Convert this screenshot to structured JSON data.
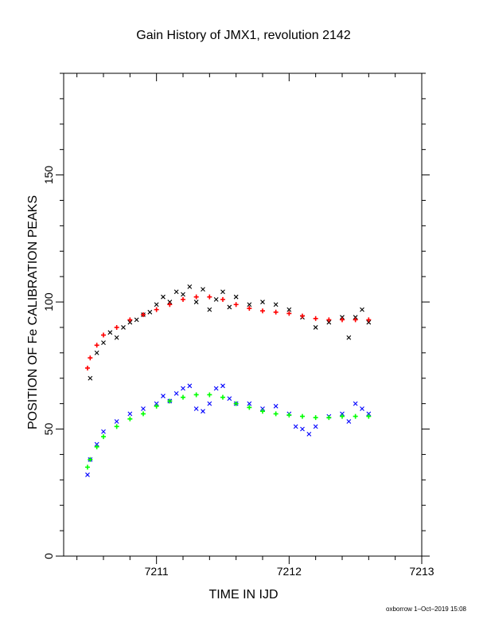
{
  "chart_data": {
    "type": "scatter",
    "title": "Gain History of JMX1, revolution 2142",
    "xlabel": "TIME IN IJD",
    "ylabel": "POSITION OF Fe CALIBRATION PEAKS",
    "xlim": [
      7210.3,
      7213.0
    ],
    "ylim": [
      0,
      190
    ],
    "xticks": [
      "7211",
      "7212",
      "7213"
    ],
    "yticks": [
      "0",
      "50",
      "100",
      "150"
    ],
    "grid": false,
    "series": [
      {
        "color": "#000000",
        "marker": "x",
        "points": [
          [
            7210.5,
            70
          ],
          [
            7210.55,
            80
          ],
          [
            7210.6,
            84
          ],
          [
            7210.65,
            88
          ],
          [
            7210.7,
            86
          ],
          [
            7210.75,
            90
          ],
          [
            7210.8,
            92
          ],
          [
            7210.85,
            93
          ],
          [
            7210.9,
            95
          ],
          [
            7210.95,
            96
          ],
          [
            7211.0,
            99
          ],
          [
            7211.05,
            102
          ],
          [
            7211.1,
            100
          ],
          [
            7211.15,
            104
          ],
          [
            7211.2,
            103
          ],
          [
            7211.25,
            106
          ],
          [
            7211.3,
            100
          ],
          [
            7211.35,
            105
          ],
          [
            7211.4,
            97
          ],
          [
            7211.45,
            101
          ],
          [
            7211.5,
            104
          ],
          [
            7211.55,
            98
          ],
          [
            7211.6,
            102
          ],
          [
            7211.7,
            99
          ],
          [
            7211.8,
            100
          ],
          [
            7211.9,
            99
          ],
          [
            7212.0,
            97
          ],
          [
            7212.1,
            94
          ],
          [
            7212.2,
            90
          ],
          [
            7212.3,
            92
          ],
          [
            7212.4,
            94
          ],
          [
            7212.45,
            86
          ],
          [
            7212.5,
            94
          ],
          [
            7212.55,
            97
          ],
          [
            7212.6,
            92
          ]
        ]
      },
      {
        "color": "#ff0000",
        "marker": "+",
        "points": [
          [
            7210.48,
            74
          ],
          [
            7210.5,
            78
          ],
          [
            7210.55,
            83
          ],
          [
            7210.6,
            87
          ],
          [
            7210.7,
            90
          ],
          [
            7210.8,
            93
          ],
          [
            7210.9,
            95
          ],
          [
            7211.0,
            97
          ],
          [
            7211.1,
            99
          ],
          [
            7211.2,
            101
          ],
          [
            7211.3,
            102
          ],
          [
            7211.4,
            102
          ],
          [
            7211.5,
            101
          ],
          [
            7211.6,
            99
          ],
          [
            7211.7,
            97.5
          ],
          [
            7211.8,
            96.5
          ],
          [
            7211.9,
            96
          ],
          [
            7212.0,
            95.5
          ],
          [
            7212.1,
            94.5
          ],
          [
            7212.2,
            93.5
          ],
          [
            7212.3,
            93
          ],
          [
            7212.4,
            93
          ],
          [
            7212.5,
            93
          ],
          [
            7212.6,
            93
          ]
        ]
      },
      {
        "color": "#0000ff",
        "marker": "x",
        "points": [
          [
            7210.48,
            32
          ],
          [
            7210.5,
            38
          ],
          [
            7210.55,
            44
          ],
          [
            7210.6,
            49
          ],
          [
            7210.7,
            53
          ],
          [
            7210.8,
            56
          ],
          [
            7210.9,
            58
          ],
          [
            7211.0,
            60
          ],
          [
            7211.05,
            63
          ],
          [
            7211.1,
            61
          ],
          [
            7211.15,
            64
          ],
          [
            7211.2,
            66
          ],
          [
            7211.25,
            67
          ],
          [
            7211.3,
            58
          ],
          [
            7211.35,
            57
          ],
          [
            7211.4,
            60
          ],
          [
            7211.45,
            66
          ],
          [
            7211.5,
            67
          ],
          [
            7211.55,
            62
          ],
          [
            7211.6,
            60
          ],
          [
            7211.7,
            60
          ],
          [
            7211.8,
            58
          ],
          [
            7211.9,
            59
          ],
          [
            7212.0,
            56
          ],
          [
            7212.05,
            51
          ],
          [
            7212.1,
            50
          ],
          [
            7212.15,
            48
          ],
          [
            7212.2,
            51
          ],
          [
            7212.3,
            55
          ],
          [
            7212.4,
            56
          ],
          [
            7212.45,
            53
          ],
          [
            7212.5,
            60
          ],
          [
            7212.55,
            58
          ],
          [
            7212.6,
            56
          ]
        ]
      },
      {
        "color": "#00ff00",
        "marker": "+",
        "points": [
          [
            7210.48,
            35
          ],
          [
            7210.5,
            38
          ],
          [
            7210.55,
            43
          ],
          [
            7210.6,
            47
          ],
          [
            7210.7,
            51
          ],
          [
            7210.8,
            54
          ],
          [
            7210.9,
            56
          ],
          [
            7211.0,
            59
          ],
          [
            7211.1,
            61
          ],
          [
            7211.2,
            62.5
          ],
          [
            7211.3,
            63.5
          ],
          [
            7211.4,
            63.5
          ],
          [
            7211.5,
            62.5
          ],
          [
            7211.6,
            60
          ],
          [
            7211.7,
            58.5
          ],
          [
            7211.8,
            57
          ],
          [
            7211.9,
            56
          ],
          [
            7212.0,
            55.5
          ],
          [
            7212.1,
            55
          ],
          [
            7212.2,
            54.5
          ],
          [
            7212.3,
            54.5
          ],
          [
            7212.4,
            55
          ],
          [
            7212.5,
            55
          ],
          [
            7212.6,
            55
          ]
        ]
      }
    ]
  },
  "footer": "oxborrow  1–Oct–2019 15:08"
}
